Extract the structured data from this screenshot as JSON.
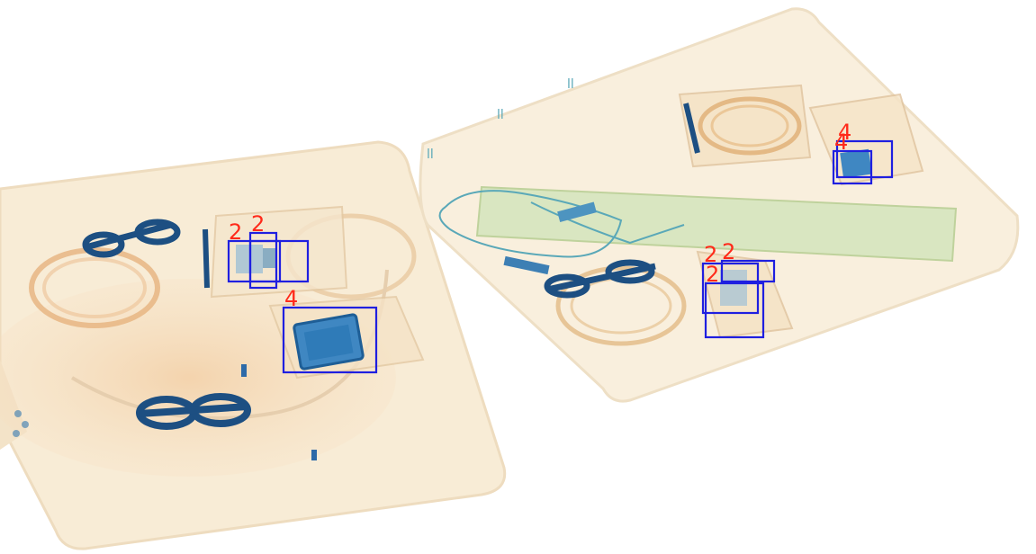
{
  "colors": {
    "box": "#1f1fe0",
    "label": "#ff2a1a",
    "tray": "#f8ecd6",
    "organic": "#e9b47c",
    "metal": "#1a5a9c",
    "green_object": "#cfe3b6"
  },
  "annotations": [
    {
      "label": "2",
      "region": "left-tray-center"
    },
    {
      "label": "2",
      "region": "left-tray-center"
    },
    {
      "label": "4",
      "region": "left-tray-center"
    },
    {
      "label": "4",
      "region": "right-tray-top-right"
    },
    {
      "label": "4",
      "region": "right-tray-top-right"
    },
    {
      "label": "2",
      "region": "right-tray-center"
    },
    {
      "label": "2",
      "region": "right-tray-center"
    },
    {
      "label": "2",
      "region": "right-tray-center"
    }
  ]
}
